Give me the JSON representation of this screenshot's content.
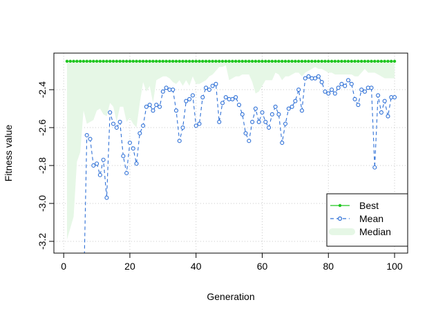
{
  "chart_data": {
    "type": "line",
    "title": "",
    "xlabel": "Generation",
    "ylabel": "Fitness value",
    "xlim": [
      -2.96,
      103.96
    ],
    "ylim": [
      -3.262,
      -2.207
    ],
    "xticks": [
      0,
      20,
      40,
      60,
      80,
      100
    ],
    "yticks": [
      -3.2,
      -3.0,
      -2.8,
      -2.6,
      -2.4
    ],
    "ytick_labels": [
      "-3.2",
      "-3.0",
      "-2.8",
      "-2.6",
      "-2.4"
    ],
    "grid": true,
    "legend_placement": "bottom-right",
    "colors": {
      "best": "#1fc61f",
      "mean": "#2d6fd6",
      "median": "#e6f7e6",
      "grid": "#c8c8c8"
    },
    "legend": [
      {
        "label": "Best",
        "style": "line-dot"
      },
      {
        "label": "Mean",
        "style": "dashed-circle"
      },
      {
        "label": "Median",
        "style": "band"
      }
    ],
    "x": [
      1,
      2,
      3,
      4,
      5,
      6,
      7,
      8,
      9,
      10,
      11,
      12,
      13,
      14,
      15,
      16,
      17,
      18,
      19,
      20,
      21,
      22,
      23,
      24,
      25,
      26,
      27,
      28,
      29,
      30,
      31,
      32,
      33,
      34,
      35,
      36,
      37,
      38,
      39,
      40,
      41,
      42,
      43,
      44,
      45,
      46,
      47,
      48,
      49,
      50,
      51,
      52,
      53,
      54,
      55,
      56,
      57,
      58,
      59,
      60,
      61,
      62,
      63,
      64,
      65,
      66,
      67,
      68,
      69,
      70,
      71,
      72,
      73,
      74,
      75,
      76,
      77,
      78,
      79,
      80,
      81,
      82,
      83,
      84,
      85,
      86,
      87,
      88,
      89,
      90,
      91,
      92,
      93,
      94,
      95,
      96,
      97,
      98,
      99,
      100
    ],
    "series": [
      {
        "name": "Best",
        "constant": -2.25
      },
      {
        "name": "Mean",
        "values": [
          null,
          null,
          null,
          null,
          null,
          -3.5,
          -2.64,
          -2.66,
          -2.8,
          -2.79,
          -2.85,
          -2.77,
          -2.97,
          -2.52,
          -2.58,
          -2.6,
          -2.57,
          -2.75,
          -2.84,
          -2.68,
          -2.71,
          -2.79,
          -2.63,
          -2.59,
          -2.49,
          -2.48,
          -2.51,
          -2.48,
          -2.49,
          -2.41,
          -2.39,
          -2.4,
          -2.4,
          -2.51,
          -2.67,
          -2.6,
          -2.46,
          -2.45,
          -2.43,
          -2.59,
          -2.58,
          -2.44,
          -2.39,
          -2.4,
          -2.38,
          -2.37,
          -2.57,
          -2.47,
          -2.44,
          -2.45,
          -2.45,
          -2.44,
          -2.48,
          -2.53,
          -2.63,
          -2.67,
          -2.57,
          -2.5,
          -2.57,
          -2.52,
          -2.57,
          -2.6,
          -2.53,
          -2.49,
          -2.53,
          -2.68,
          -2.58,
          -2.5,
          -2.49,
          -2.46,
          -2.4,
          -2.51,
          -2.34,
          -2.33,
          -2.34,
          -2.34,
          -2.33,
          -2.36,
          -2.41,
          -2.42,
          -2.4,
          -2.42,
          -2.39,
          -2.37,
          -2.38,
          -2.35,
          -2.37,
          -2.45,
          -2.48,
          -2.4,
          -2.41,
          -2.39,
          -2.39,
          -2.81,
          -2.43,
          -2.52,
          -2.46,
          -2.54,
          -2.44,
          -2.44
        ]
      },
      {
        "name": "Median",
        "values": [
          -3.19,
          -3.13,
          -3.07,
          -2.78,
          -2.73,
          -2.51,
          -2.58,
          -2.57,
          -2.56,
          -2.51,
          -2.5,
          -2.53,
          -2.54,
          -2.47,
          -2.49,
          -2.57,
          -2.49,
          -2.49,
          -2.57,
          -2.55,
          -2.58,
          -2.6,
          -2.47,
          -2.36,
          -2.41,
          -2.38,
          -2.47,
          -2.35,
          -2.34,
          -2.33,
          -2.33,
          -2.34,
          -2.36,
          -2.37,
          -2.35,
          -2.38,
          -2.35,
          -2.38,
          -2.33,
          -2.37,
          -2.37,
          -2.36,
          -2.35,
          -2.33,
          -2.32,
          -2.3,
          -2.28,
          -2.28,
          -2.27,
          -2.35,
          -2.34,
          -2.33,
          -2.33,
          -2.32,
          -2.32,
          -2.32,
          -2.36,
          -2.42,
          -2.41,
          -2.38,
          -2.35,
          -2.35,
          -2.35,
          -2.31,
          -2.32,
          -2.35,
          -2.33,
          -2.33,
          -2.32,
          -2.31,
          -2.31,
          -2.33,
          -2.31,
          -2.3,
          -2.29,
          -2.28,
          -2.29,
          -2.29,
          -2.3,
          -2.31,
          -2.31,
          -2.32,
          -2.32,
          -2.32,
          -2.32,
          -2.32,
          -2.32,
          -2.33,
          -2.33,
          -2.31,
          -2.29,
          -2.31,
          -2.31,
          -2.31,
          -2.32,
          -2.33,
          -2.34,
          -2.34,
          -2.34,
          -2.34
        ]
      }
    ]
  }
}
